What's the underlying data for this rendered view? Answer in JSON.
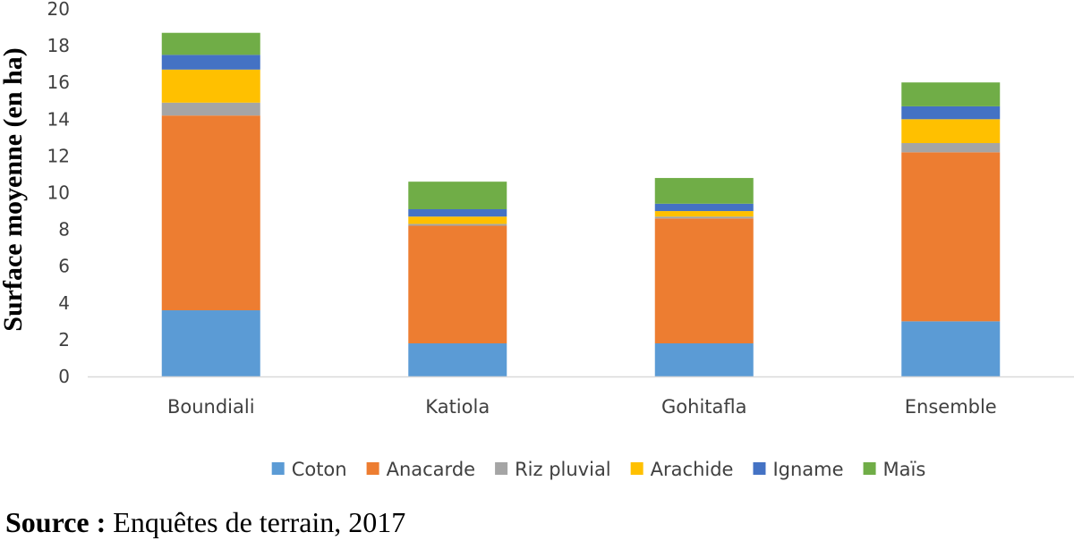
{
  "chart_data": {
    "type": "bar",
    "stacked": true,
    "categories": [
      "Boundiali",
      "Katiola",
      "Gohitafla",
      "Ensemble"
    ],
    "series": [
      {
        "name": "Coton",
        "color": "#5B9BD5",
        "values": [
          3.6,
          1.8,
          1.8,
          3.0
        ]
      },
      {
        "name": "Anacarde",
        "color": "#ED7D31",
        "values": [
          10.6,
          6.4,
          6.8,
          9.2
        ]
      },
      {
        "name": "Riz pluvial",
        "color": "#A5A5A5",
        "values": [
          0.7,
          0.1,
          0.1,
          0.5
        ]
      },
      {
        "name": "Arachide",
        "color": "#FFC000",
        "values": [
          1.8,
          0.4,
          0.3,
          1.3
        ]
      },
      {
        "name": "Igname",
        "color": "#4472C4",
        "values": [
          0.8,
          0.4,
          0.4,
          0.7
        ]
      },
      {
        "name": "Maïs",
        "color": "#70AD47",
        "values": [
          1.2,
          1.5,
          1.4,
          1.3
        ]
      }
    ],
    "ylabel": "Surface moyenne (en ha)",
    "xlabel": "",
    "ylim": [
      0,
      20
    ],
    "yticks": [
      0,
      2,
      4,
      6,
      8,
      10,
      12,
      14,
      16,
      18,
      20
    ],
    "grid": false,
    "legend_position": "bottom"
  },
  "source": {
    "label": "Source :",
    "text": " Enquêtes de terrain, 2017"
  }
}
